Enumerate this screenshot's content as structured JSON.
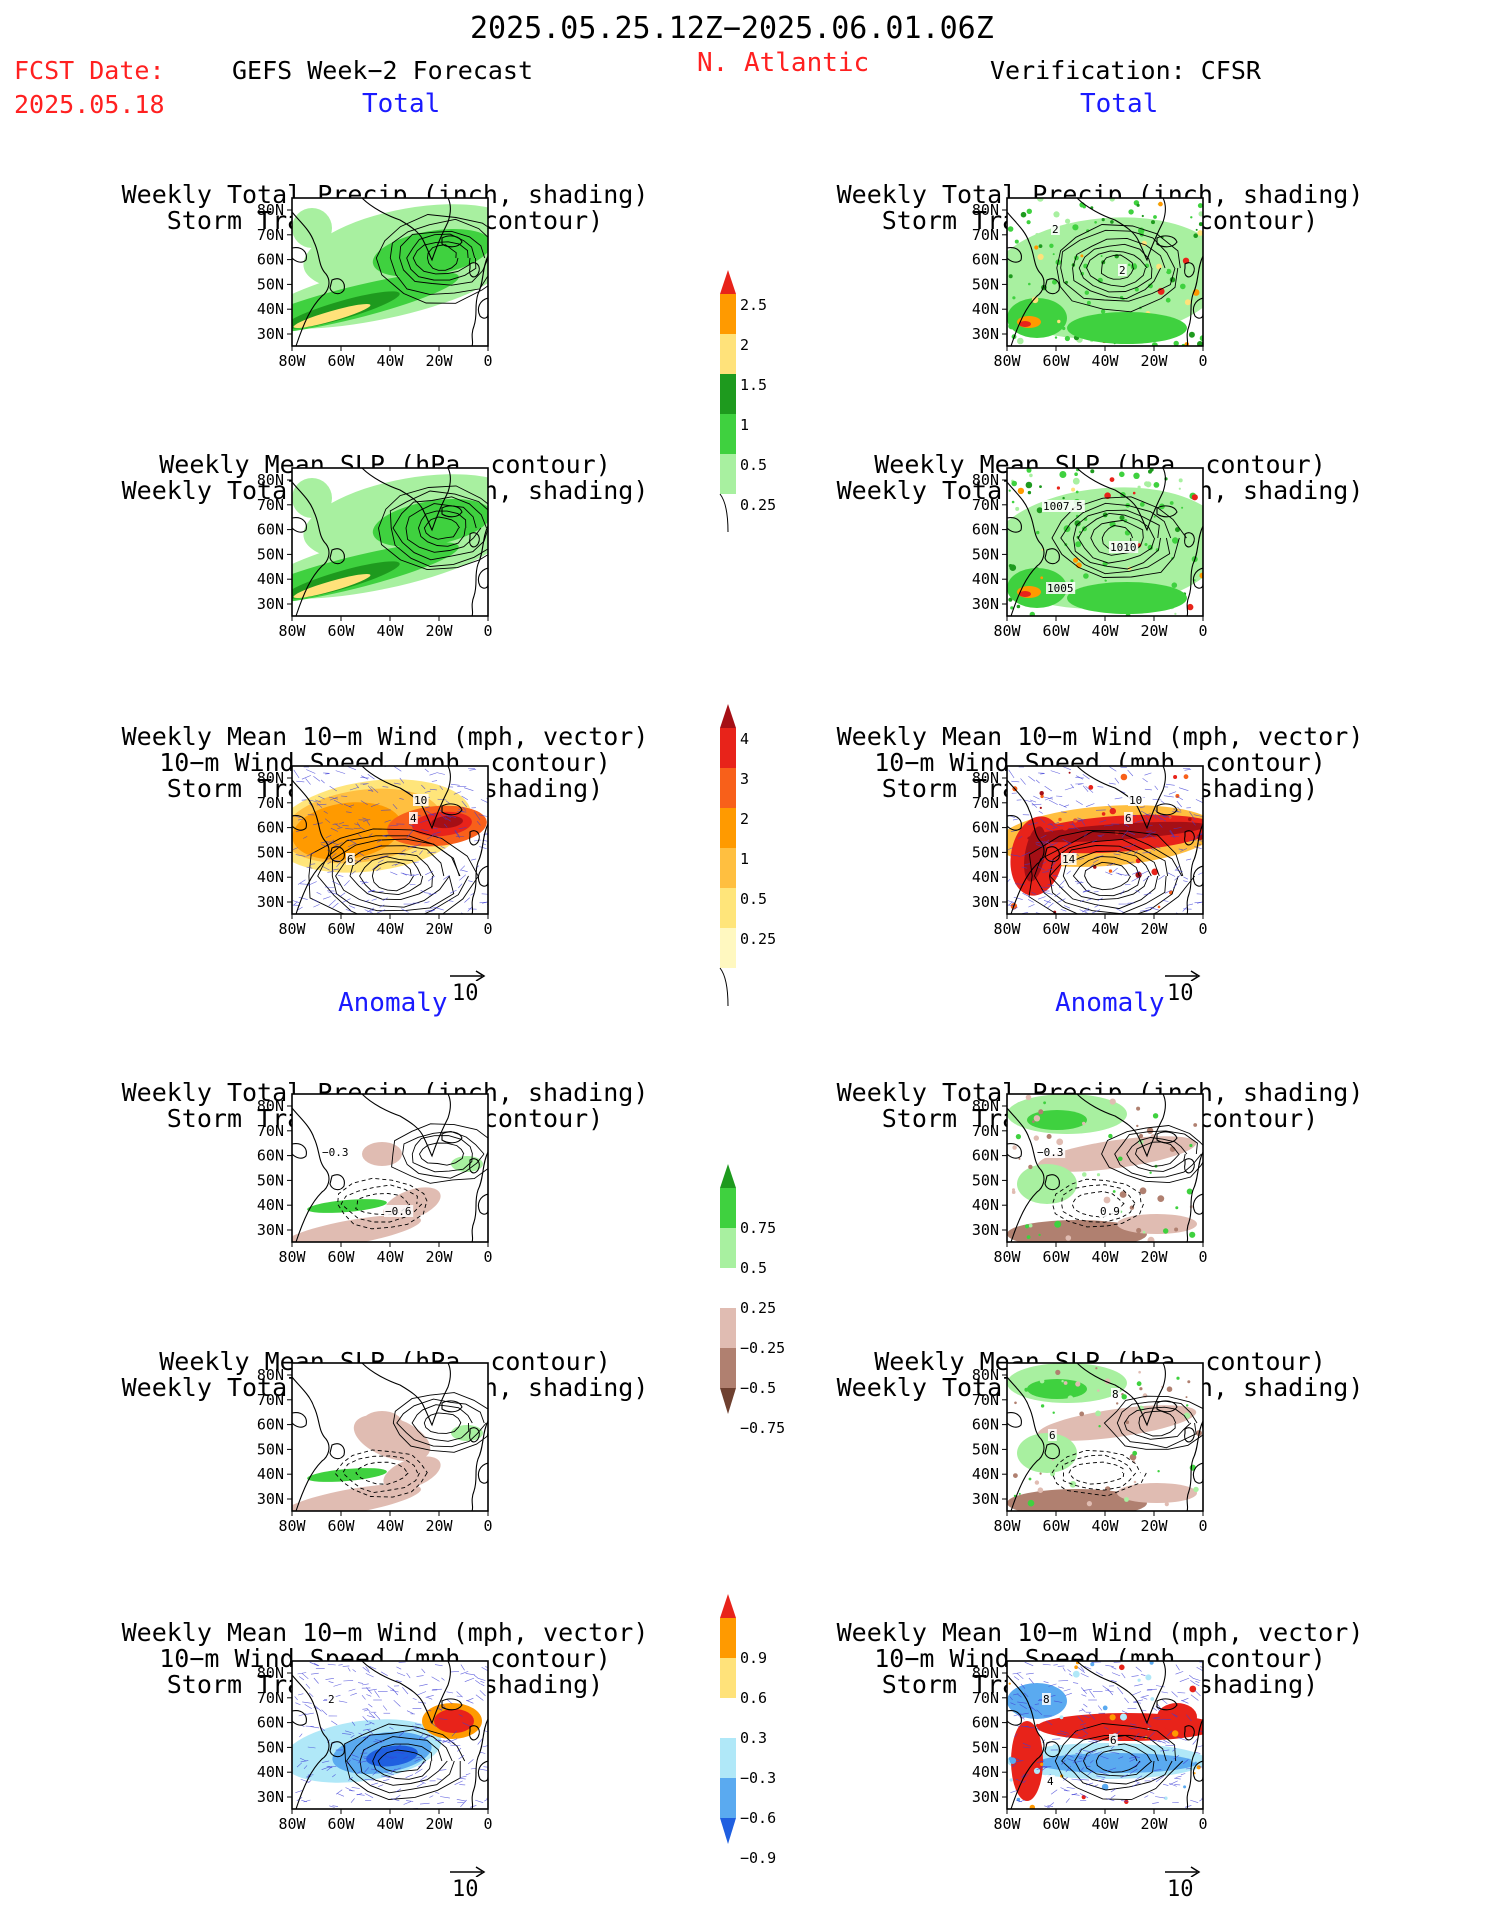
{
  "header": {
    "date_range": "2025.05.25.12Z−2025.06.01.06Z",
    "fcst_label": "FCST Date:",
    "fcst_date": "2025.05.18",
    "left_title": "GEFS Week−2 Forecast",
    "region": "N. Atlantic",
    "right_title": "Verification: CFSR"
  },
  "sections": {
    "total": "Total",
    "anomaly": "Anomaly"
  },
  "titles": {
    "precip_storm": [
      "Weekly Total Precip (inch, shading)",
      "Storm Track Density (contour)"
    ],
    "slp_precip": [
      "Weekly Mean SLP (hPa, contour)",
      "Weekly Total Precip (inch, shading)"
    ],
    "wind_storm": [
      "Weekly Mean 10−m Wind (mph, vector)",
      "10−m Wind Speed (mph, contour)",
      "Storm Track Density (shading)"
    ]
  },
  "axes": {
    "lat_labels": [
      "80N",
      "70N",
      "60N",
      "50N",
      "40N",
      "30N"
    ],
    "lon_labels": [
      "80W",
      "60W",
      "40W",
      "20W",
      "0"
    ]
  },
  "colorbars": {
    "total_precip": {
      "labels": [
        "2.5",
        "2",
        "1.5",
        "1",
        "0.5",
        "0.25"
      ],
      "colors": [
        "#e8231a",
        "#ff9a00",
        "#ffe27a",
        "#1e9a1e",
        "#3fd13f",
        "#a8f0a0"
      ]
    },
    "total_storm": {
      "labels": [
        "4",
        "3",
        "2",
        "1",
        "0.5",
        "0.25"
      ],
      "colors": [
        "#a50f15",
        "#e8231a",
        "#f8601a",
        "#ff9a00",
        "#ffbf40",
        "#ffe57a",
        "#fff8c0"
      ]
    },
    "anom_precip": {
      "labels": [
        "0.75",
        "0.5",
        "0.25",
        "−0.25",
        "−0.5",
        "−0.75"
      ],
      "colors": [
        "#1e9a1e",
        "#3fd13f",
        "#a8f0a0",
        "#ffffff",
        "#e0bcb2",
        "#b08070",
        "#6e4030"
      ]
    },
    "anom_storm": {
      "labels": [
        "0.9",
        "0.6",
        "0.3",
        "−0.3",
        "−0.6",
        "−0.9"
      ],
      "colors": [
        "#e8231a",
        "#ff9a00",
        "#ffe27a",
        "#ffffff",
        "#b0e8f8",
        "#5aaaf0",
        "#1f5fe0"
      ]
    }
  },
  "map_labels": {
    "fc_total_wind": [
      "4",
      "6",
      "10"
    ],
    "ob_total_slp": [
      "1007.5",
      "1010",
      "1005"
    ],
    "ob_total_precip": [
      "2",
      "2"
    ],
    "ob_total_wind": [
      "6",
      "14",
      "10"
    ],
    "fc_anom_precip": [
      "−0.6",
      "−0.3"
    ],
    "ob_anom_precip": [
      "0.9",
      "−0.3"
    ],
    "ob_anom_slp": [
      "8",
      "6"
    ],
    "fc_anom_wind": [
      "2"
    ],
    "ob_anom_wind": [
      "8",
      "6",
      "4"
    ]
  },
  "vector_ref": "10"
}
